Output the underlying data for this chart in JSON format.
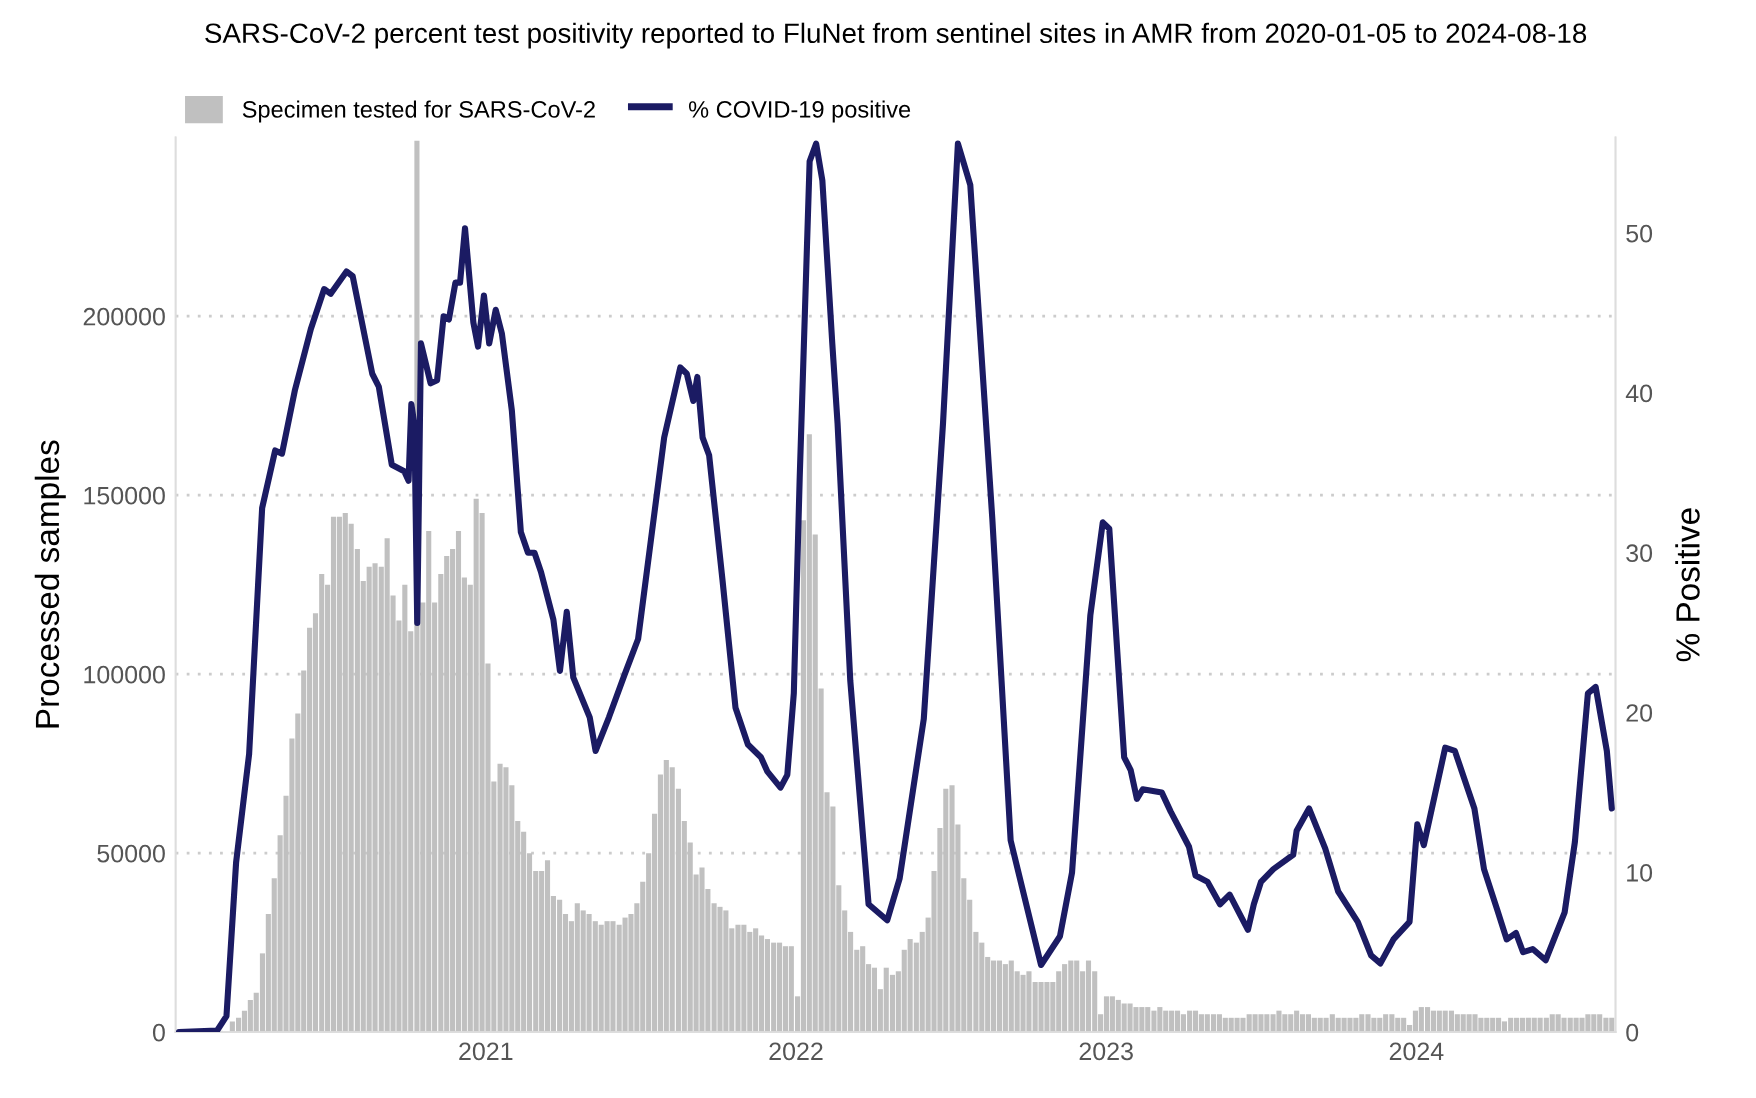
{
  "chart_data": {
    "type": "bar",
    "title": "SARS-CoV-2 percent test positivity reported to FluNet from sentinel sites in AMR from 2020-01-05 to 2024-08-18",
    "ylabel": "Processed samples",
    "y2label": "% Positive",
    "x": [
      2020.011,
      2020.03,
      2020.049,
      2020.068,
      2020.088,
      2020.107,
      2020.126,
      2020.145,
      2020.164,
      2020.183,
      2020.203,
      2020.222,
      2020.241,
      2020.26,
      2020.28,
      2020.299,
      2020.318,
      2020.337,
      2020.356,
      2020.375,
      2020.394,
      2020.413,
      2020.432,
      2020.451,
      2020.471,
      2020.49,
      2020.509,
      2020.528,
      2020.547,
      2020.566,
      2020.586,
      2020.605,
      2020.624,
      2020.643,
      2020.663,
      2020.682,
      2020.701,
      2020.72,
      2020.739,
      2020.758,
      2020.778,
      2020.797,
      2020.816,
      2020.835,
      2020.855,
      2020.874,
      2020.893,
      2020.912,
      2020.931,
      2020.95,
      2020.969,
      2020.988,
      2021.007,
      2021.026,
      2021.046,
      2021.065,
      2021.084,
      2021.103,
      2021.122,
      2021.141,
      2021.161,
      2021.18,
      2021.199,
      2021.218,
      2021.238,
      2021.257,
      2021.276,
      2021.295,
      2021.314,
      2021.333,
      2021.353,
      2021.372,
      2021.391,
      2021.41,
      2021.43,
      2021.449,
      2021.468,
      2021.487,
      2021.506,
      2021.525,
      2021.544,
      2021.563,
      2021.582,
      2021.601,
      2021.621,
      2021.64,
      2021.659,
      2021.678,
      2021.697,
      2021.716,
      2021.736,
      2021.755,
      2021.774,
      2021.793,
      2021.813,
      2021.832,
      2021.851,
      2021.87,
      2021.889,
      2021.908,
      2021.928,
      2021.947,
      2021.966,
      2021.985,
      2022.005,
      2022.024,
      2022.043,
      2022.062,
      2022.081,
      2022.1,
      2022.119,
      2022.138,
      2022.157,
      2022.176,
      2022.196,
      2022.215,
      2022.234,
      2022.253,
      2022.272,
      2022.291,
      2022.311,
      2022.33,
      2022.349,
      2022.368,
      2022.388,
      2022.407,
      2022.426,
      2022.445,
      2022.464,
      2022.483,
      2022.503,
      2022.522,
      2022.541,
      2022.56,
      2022.58,
      2022.599,
      2022.618,
      2022.637,
      2022.656,
      2022.675,
      2022.694,
      2022.713,
      2022.732,
      2022.751,
      2022.771,
      2022.79,
      2022.809,
      2022.828,
      2022.847,
      2022.866,
      2022.886,
      2022.905,
      2022.924,
      2022.943,
      2022.963,
      2022.982,
      2023.001,
      2023.02,
      2023.039,
      2023.058,
      2023.077,
      2023.096,
      2023.115,
      2023.134,
      2023.154,
      2023.173,
      2023.192,
      2023.211,
      2023.23,
      2023.249,
      2023.269,
      2023.288,
      2023.307,
      2023.326,
      2023.346,
      2023.365,
      2023.384,
      2023.403,
      2023.422,
      2023.441,
      2023.461,
      2023.48,
      2023.499,
      2023.518,
      2023.538,
      2023.557,
      2023.576,
      2023.595,
      2023.614,
      2023.633,
      2023.652,
      2023.671,
      2023.69,
      2023.709,
      2023.729,
      2023.748,
      2023.767,
      2023.786,
      2023.805,
      2023.824,
      2023.844,
      2023.863,
      2023.882,
      2023.901,
      2023.921,
      2023.94,
      2023.959,
      2023.978,
      2023.997,
      2024.016,
      2024.036,
      2024.055,
      2024.074,
      2024.093,
      2024.113,
      2024.132,
      2024.151,
      2024.17,
      2024.189,
      2024.208,
      2024.227,
      2024.246,
      2024.265,
      2024.284,
      2024.304,
      2024.323,
      2024.342,
      2024.361,
      2024.38,
      2024.399,
      2024.419,
      2024.438,
      2024.457,
      2024.476,
      2024.496,
      2024.515,
      2024.534,
      2024.553,
      2024.572,
      2024.591,
      2024.611,
      2024.63
    ],
    "series": [
      {
        "name": "Specimen tested for SARS-CoV-2",
        "color": "#c0c0c0",
        "values": [
          0,
          0,
          0,
          0,
          0,
          0,
          0,
          0,
          0,
          3000,
          4000,
          6000,
          9000,
          11000,
          22000,
          33000,
          43000,
          55000,
          66000,
          82000,
          89000,
          101000,
          113000,
          117000,
          128000,
          125000,
          144000,
          144000,
          145000,
          142000,
          135000,
          126000,
          130000,
          131000,
          130000,
          138000,
          122000,
          115000,
          125000,
          112000,
          249000,
          120000,
          140000,
          120000,
          128000,
          133000,
          135000,
          140000,
          127000,
          125000,
          149000,
          145000,
          103000,
          70000,
          75000,
          74000,
          69000,
          59000,
          56000,
          50000,
          45000,
          45000,
          48000,
          38000,
          37000,
          33000,
          31000,
          36000,
          34000,
          33000,
          31000,
          30000,
          31000,
          31000,
          30000,
          32000,
          33000,
          36000,
          42000,
          50000,
          61000,
          72000,
          76000,
          74000,
          68000,
          59000,
          53000,
          44000,
          46000,
          40000,
          36000,
          35000,
          34000,
          29000,
          30000,
          30000,
          28000,
          29000,
          27000,
          26000,
          25000,
          25000,
          24000,
          24000,
          10000,
          143000,
          167000,
          139000,
          96000,
          67000,
          63000,
          41000,
          34000,
          28000,
          23000,
          24000,
          19000,
          18000,
          12000,
          18000,
          16000,
          17000,
          23000,
          26000,
          25000,
          28000,
          32000,
          45000,
          57000,
          68000,
          69000,
          58000,
          43000,
          37000,
          28000,
          25000,
          21000,
          20000,
          20000,
          19000,
          20000,
          17000,
          16000,
          17000,
          14000,
          14000,
          14000,
          14000,
          17000,
          19000,
          20000,
          20000,
          17000,
          20000,
          17000,
          5000,
          10000,
          10000,
          9000,
          8000,
          8000,
          7000,
          7000,
          7000,
          6000,
          7000,
          6000,
          6000,
          6000,
          5000,
          6000,
          6000,
          5000,
          5000,
          5000,
          5000,
          4000,
          4000,
          4000,
          4000,
          5000,
          5000,
          5000,
          5000,
          5000,
          6000,
          5000,
          5000,
          6000,
          5000,
          5000,
          4000,
          4000,
          4000,
          5000,
          4000,
          4000,
          4000,
          4000,
          5000,
          5000,
          4000,
          4000,
          5000,
          5000,
          4000,
          4000,
          2000,
          6000,
          7000,
          7000,
          6000,
          6000,
          6000,
          6000,
          5000,
          5000,
          5000,
          5000,
          4000,
          4000,
          4000,
          4000,
          3000,
          4000,
          4000,
          4000,
          4000,
          4000,
          4000,
          4000,
          5000,
          5000,
          4000,
          4000,
          4000,
          4000,
          5000,
          5000,
          5000,
          4000,
          4000
        ]
      },
      {
        "name": "% COVID-19 positive",
        "type": "line",
        "axis": "y2",
        "color": "#1b1b63",
        "x": [
          2020.011,
          2020.134,
          2020.164,
          2020.195,
          2020.237,
          2020.279,
          2020.321,
          2020.343,
          2020.385,
          2020.436,
          2020.479,
          2020.5,
          2020.551,
          2020.571,
          2020.634,
          2020.655,
          2020.697,
          2020.737,
          2020.751,
          2020.76,
          2020.77,
          2020.779,
          2020.791,
          2020.822,
          2020.843,
          2020.864,
          2020.881,
          2020.902,
          2020.917,
          2020.933,
          2020.96,
          2020.975,
          2020.994,
          2021.011,
          2021.032,
          2021.052,
          2021.084,
          2021.113,
          2021.136,
          2021.157,
          2021.178,
          2021.218,
          2021.239,
          2021.261,
          2021.282,
          2021.335,
          2021.354,
          2021.397,
          2021.448,
          2021.491,
          2021.533,
          2021.575,
          2021.627,
          2021.648,
          2021.669,
          2021.682,
          2021.699,
          2021.72,
          2021.763,
          2021.805,
          2021.845,
          2021.887,
          2021.908,
          2021.95,
          2021.972,
          2021.993,
          2022.012,
          2022.044,
          2022.065,
          2022.085,
          2022.117,
          2022.134,
          2022.175,
          2022.234,
          2022.294,
          2022.334,
          2022.412,
          2022.474,
          2022.522,
          2022.562,
          2022.633,
          2022.692,
          2022.79,
          2022.851,
          2022.89,
          2022.949,
          2022.989,
          2023.01,
          2023.058,
          2023.079,
          2023.099,
          2023.118,
          2023.179,
          2023.208,
          2023.267,
          2023.288,
          2023.327,
          2023.367,
          2023.398,
          2023.457,
          2023.476,
          2023.499,
          2023.539,
          2023.603,
          2023.614,
          2023.654,
          2023.706,
          2023.748,
          2023.811,
          2023.854,
          2023.884,
          2023.926,
          2023.978,
          2024.003,
          2024.024,
          2024.093,
          2024.124,
          2024.187,
          2024.218,
          2024.26,
          2024.291,
          2024.321,
          2024.344,
          2024.375,
          2024.417,
          2024.478,
          2024.511,
          2024.553,
          2024.578,
          2024.614,
          2024.63
        ],
        "values": [
          0,
          0.1,
          1,
          10.6,
          17.4,
          32.8,
          36.4,
          36.2,
          40.2,
          44,
          46.5,
          46.2,
          47.6,
          47.3,
          41.2,
          40.4,
          35.5,
          35.1,
          34.5,
          39.3,
          38,
          25.6,
          43.1,
          40.6,
          40.8,
          44.8,
          44.6,
          46.9,
          46.9,
          50.3,
          44.4,
          42.9,
          46.1,
          43.1,
          45.2,
          43.7,
          38.9,
          31.3,
          30.0,
          30.0,
          28.8,
          25.8,
          22.6,
          26.3,
          22.2,
          19.7,
          17.6,
          19.7,
          22.4,
          24.6,
          30.9,
          37.2,
          41.6,
          41.2,
          39.5,
          41.0,
          37.2,
          36.1,
          28.3,
          20.3,
          18.0,
          17.2,
          16.3,
          15.3,
          16.1,
          21.2,
          34.7,
          54.5,
          55.6,
          53.3,
          43.1,
          38.1,
          22.0,
          8.0,
          7.0,
          9.6,
          19.6,
          38.1,
          55.6,
          53.0,
          32.1,
          12.0,
          4.2,
          6.0,
          10.0,
          26.1,
          31.9,
          31.5,
          17.2,
          16.4,
          14.6,
          15.2,
          15.0,
          13.8,
          11.6,
          9.8,
          9.4,
          8.0,
          8.6,
          6.4,
          8.0,
          9.4,
          10.2,
          11.1,
          12.6,
          14.0,
          11.5,
          8.8,
          6.9,
          4.8,
          4.3,
          5.8,
          6.9,
          13.0,
          11.7,
          17.8,
          17.6,
          14.0,
          10.2,
          7.7,
          5.8,
          6.2,
          5.0,
          5.2,
          4.5,
          7.5,
          11.9,
          21.2,
          21.6,
          17.6,
          14.0
        ]
      }
    ],
    "xlim": [
      2020.0,
      2024.642
    ],
    "xticks": [
      2021,
      2022,
      2023,
      2024
    ],
    "ylim": [
      0,
      250000
    ],
    "yticks": [
      0,
      50000,
      100000,
      150000,
      200000
    ],
    "y2lim": [
      0,
      56
    ],
    "y2ticks": [
      0,
      10,
      20,
      30,
      40,
      50
    ],
    "grid": "y",
    "legend": "top left"
  }
}
